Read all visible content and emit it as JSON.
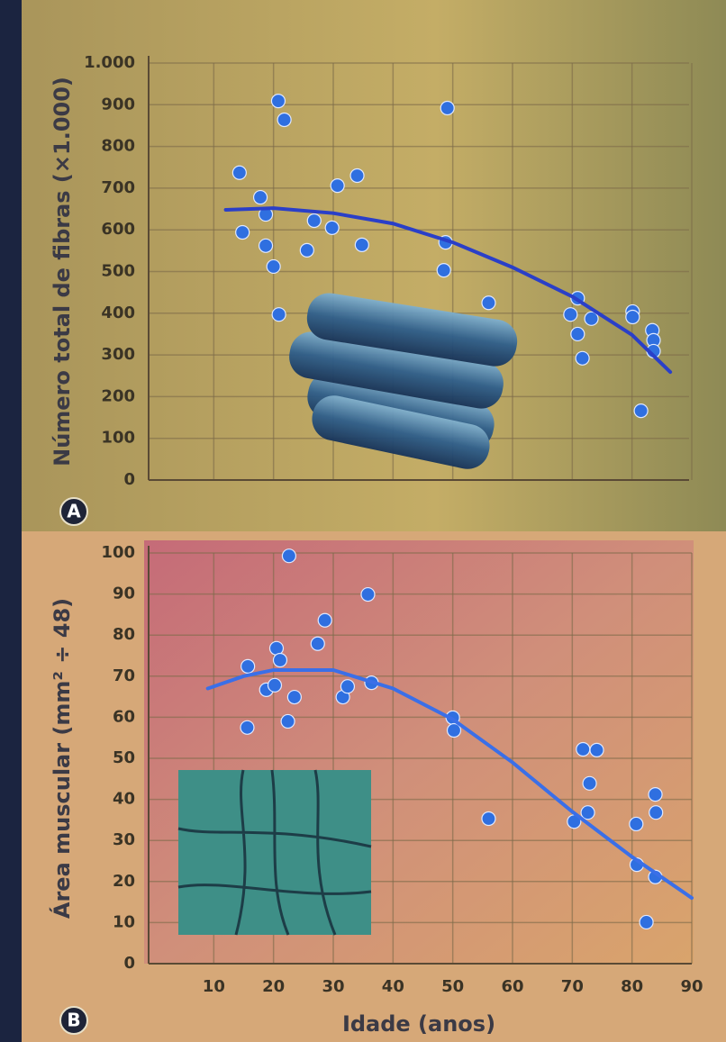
{
  "chart_data": [
    {
      "type": "scatter",
      "panel": "A",
      "ylabel": "Número total de fibras (×1.000)",
      "xlim": [
        0,
        90
      ],
      "ylim": [
        0,
        1000
      ],
      "xticks": [
        10,
        20,
        30,
        40,
        50,
        60,
        70,
        80,
        90
      ],
      "xtick_labels": false,
      "yticks": [
        0,
        100,
        200,
        300,
        400,
        500,
        600,
        700,
        800,
        900,
        {
          "value": 1000,
          "label": "1.000"
        }
      ],
      "grid": true,
      "series": [
        {
          "color": "#2f6fe0",
          "x": [
            14.3,
            14.8,
            17.8,
            18.7,
            18.7,
            20,
            20.8,
            21.8,
            20.9,
            25.6,
            26.8,
            29.8,
            30.7,
            34,
            34.8,
            49.1,
            48.8,
            48.5,
            56,
            70.9,
            69.7,
            70.9,
            73.2,
            71.7,
            80.1,
            80.1,
            81.5,
            83.4,
            83.6,
            83.6
          ],
          "values": [
            737,
            594,
            678,
            637,
            562,
            512,
            909,
            864,
            397,
            551,
            622,
            605,
            706,
            730,
            564,
            892,
            570,
            503,
            425,
            436,
            397,
            350,
            387,
            292,
            404,
            391,
            166,
            359,
            335,
            309
          ]
        },
        {
          "type": "line",
          "color": "#2a3fc8",
          "x": [
            12,
            20,
            30,
            40,
            50,
            60,
            70,
            80,
            86.4
          ],
          "values": [
            648,
            652,
            640,
            615,
            570,
            510,
            440,
            348,
            259
          ]
        }
      ]
    },
    {
      "type": "scatter",
      "panel": "B",
      "ylabel": "Área muscular (mm² ÷ 48)",
      "xlabel": "Idade (anos)",
      "xlim": [
        0,
        90
      ],
      "ylim": [
        0,
        100
      ],
      "xticks": [
        10,
        20,
        30,
        40,
        50,
        60,
        70,
        80,
        90
      ],
      "xtick_labels": true,
      "yticks": [
        0,
        10,
        20,
        30,
        40,
        50,
        60,
        70,
        80,
        90,
        100
      ],
      "grid": true,
      "series": [
        {
          "color": "#2f6fe0",
          "x": [
            15.7,
            15.6,
            20.5,
            21.1,
            18.8,
            20.2,
            22.6,
            22.4,
            23.5,
            27.4,
            28.6,
            31.6,
            32.4,
            35.8,
            36.4,
            50,
            50.2,
            56,
            70.3,
            71.8,
            74.1,
            72.9,
            72.6,
            80.7,
            80.8,
            82.4,
            83.9,
            84,
            83.9
          ],
          "values": [
            72.4,
            57.5,
            76.8,
            73.9,
            66.7,
            67.8,
            99.3,
            59,
            64.9,
            77.9,
            83.6,
            64.9,
            67.5,
            89.9,
            68.4,
            59.9,
            56.8,
            35.3,
            34.6,
            52.2,
            52,
            43.9,
            36.8,
            34,
            24.1,
            10.1,
            41.2,
            36.8,
            21.1
          ]
        },
        {
          "type": "line",
          "color": "#3a6fe8",
          "x": [
            9,
            15,
            20,
            30,
            40,
            50,
            60,
            70,
            80,
            90
          ],
          "values": [
            67,
            70,
            71.5,
            71.5,
            67,
            59.5,
            49,
            37,
            26,
            16
          ]
        }
      ]
    }
  ]
}
